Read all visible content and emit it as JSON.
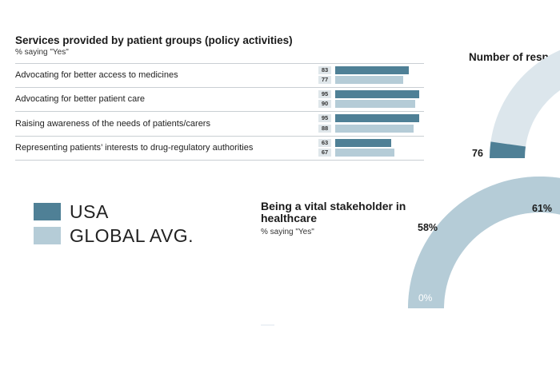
{
  "colors": {
    "usa": "#4f8096",
    "global": "#b5ccd7",
    "light": "#dce6ec"
  },
  "chart_data": [
    {
      "type": "bar",
      "title": "Services provided by patient groups (policy activities)",
      "subtitle": "% saying \"Yes\"",
      "categories": [
        "Advocating for better access to medicines",
        "Advocating for better patient care",
        "Raising awareness of the needs of patients/carers",
        "Representing patients’ interests to drug-regulatory authorities"
      ],
      "series": [
        {
          "name": "USA",
          "values": [
            83,
            95,
            95,
            63
          ]
        },
        {
          "name": "GLOBAL AVG.",
          "values": [
            77,
            90,
            88,
            67
          ]
        }
      ],
      "legend": "left"
    },
    {
      "type": "pie",
      "title": "Being a vital stakeholder in healthcare",
      "subtitle": "% saying \"Yes\"",
      "labels": {
        "start": "0%",
        "global": "58%",
        "usa": "61%"
      },
      "values": {
        "global": 58,
        "usa": 61
      }
    },
    {
      "type": "pie",
      "title": "Number of respo",
      "labels": {
        "start": "76"
      },
      "values": {
        "start": 76
      }
    }
  ],
  "legend": {
    "usa": "USA",
    "global": "GLOBAL AVG."
  }
}
